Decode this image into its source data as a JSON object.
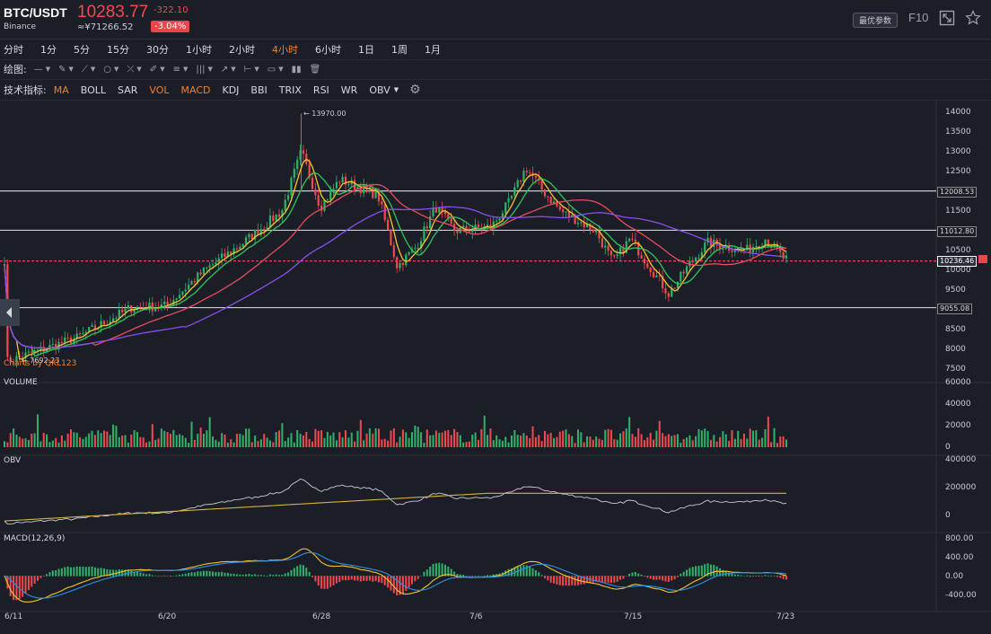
{
  "header": {
    "pair": "BTC/USDT",
    "exchange": "Binance",
    "price": "10283.77",
    "change": "-322.10",
    "cny": "≈¥71266.52",
    "change_pct": "-3.04%",
    "best_params": "最优参数",
    "f10": "F10"
  },
  "timeframes": [
    "分时",
    "1分",
    "5分",
    "15分",
    "30分",
    "1小时",
    "2小时",
    "4小时",
    "6小时",
    "1日",
    "1周",
    "1月"
  ],
  "active_timeframe": "4小时",
  "draw_label": "绘图:",
  "indicator_label": "技术指标:",
  "indicators": [
    "MA",
    "BOLL",
    "SAR",
    "VOL",
    "MACD",
    "KDJ",
    "BBI",
    "TRIX",
    "RSI",
    "WR",
    "OBV"
  ],
  "active_indicators": [
    "MA",
    "VOL",
    "MACD"
  ],
  "panels": {
    "volume": "VOLUME",
    "obv": "OBV",
    "macd": "MACD(12,26,9)"
  },
  "chart_annotations": {
    "max": "← 13970.00",
    "min": "← 7692.23",
    "brand": "Charts by QKL123"
  },
  "price_levels": [
    "12008.53",
    "11012.80",
    "10236.46",
    "9055.08"
  ],
  "price_axis": [
    "14000",
    "13500",
    "13000",
    "12500",
    "12000",
    "11500",
    "11000",
    "10500",
    "10000",
    "9500",
    "9000",
    "8500",
    "8000",
    "7500"
  ],
  "volume_axis": [
    "60000",
    "40000",
    "20000",
    "0"
  ],
  "obv_axis": [
    "400000",
    "200000",
    "0"
  ],
  "macd_axis": [
    "800.00",
    "400.00",
    "0.00",
    "-400.00"
  ],
  "x_dates": [
    "6/11",
    "6/20",
    "6/28",
    "7/6",
    "7/15",
    "7/23"
  ],
  "colors": {
    "up": "#2fb26a",
    "down": "#f1494f",
    "accent": "#f3802f",
    "ma_yellow": "#f5c52b",
    "ma_green": "#31c45e",
    "ma_red": "#e94b5f",
    "ma_purple": "#8a4ff0",
    "obv": "#c9ccd6",
    "obv_ma": "#d8b23a",
    "dif": "#f5c52b",
    "dea": "#2f8fe8"
  },
  "chart_data": {
    "type": "candlestick",
    "y_range": [
      7500,
      14000
    ],
    "max_price": 13970.0,
    "min_price": 7692.23,
    "anchors": [
      {
        "x": "6/11",
        "close": 7692
      },
      {
        "x": "6/15",
        "close": 8300
      },
      {
        "x": "6/18",
        "close": 9050
      },
      {
        "x": "6/20",
        "close": 9100
      },
      {
        "x": "6/22",
        "close": 10000
      },
      {
        "x": "6/24",
        "close": 10700
      },
      {
        "x": "6/26",
        "close": 11500
      },
      {
        "x": "6/27",
        "close": 13000
      },
      {
        "x": "6/28",
        "close": 11600
      },
      {
        "x": "6/29",
        "close": 12300
      },
      {
        "x": "7/1",
        "close": 11900
      },
      {
        "x": "7/2",
        "close": 10100
      },
      {
        "x": "7/3",
        "close": 10600
      },
      {
        "x": "7/4",
        "close": 11600
      },
      {
        "x": "7/5",
        "close": 11000
      },
      {
        "x": "7/7",
        "close": 11100
      },
      {
        "x": "7/8",
        "close": 11700
      },
      {
        "x": "7/9",
        "close": 12600
      },
      {
        "x": "7/10",
        "close": 12000
      },
      {
        "x": "7/11",
        "close": 11500
      },
      {
        "x": "7/13",
        "close": 11000
      },
      {
        "x": "7/14",
        "close": 10200
      },
      {
        "x": "7/15",
        "close": 10800
      },
      {
        "x": "7/17",
        "close": 9400
      },
      {
        "x": "7/18",
        "close": 10100
      },
      {
        "x": "7/19",
        "close": 10700
      },
      {
        "x": "7/21",
        "close": 10500
      },
      {
        "x": "7/22",
        "close": 10800
      },
      {
        "x": "7/23",
        "close": 10283
      }
    ],
    "horizontal_lines": [
      12008.53,
      11012.8,
      10236.46,
      9055.08
    ],
    "volume_range": [
      0,
      60000
    ],
    "obv_range": [
      -50000,
      400000
    ],
    "macd_range": [
      -500,
      900
    ]
  }
}
